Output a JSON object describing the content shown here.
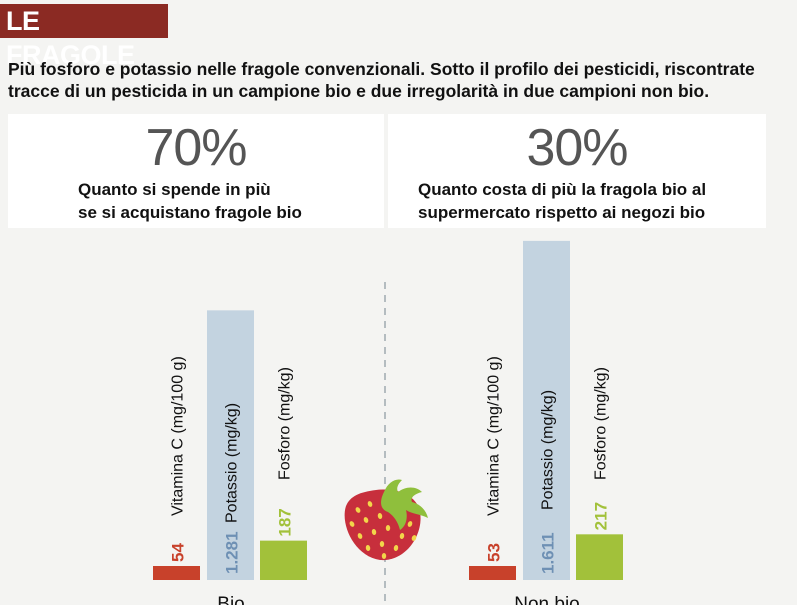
{
  "header": {
    "title": "LE FRAGOLE",
    "subtitle_line1": "Più fosforo e potassio nelle fragole convenzionali. Sotto il profilo dei pesticidi, riscontrate",
    "subtitle_line2": "tracce di un pesticida in un campione bio e due irregolarità in due campioni non bio."
  },
  "stats": [
    {
      "value": "70%",
      "line1": "Quanto si spende in più",
      "line2": "se si acquistano fragole bio"
    },
    {
      "value": "30%",
      "line1": "Quanto costa di più la fragola bio al",
      "line2": "supermercato rispetto ai negozi bio"
    }
  ],
  "colors": {
    "vitamina": "#c8412b",
    "potassio": "#c3d3e0",
    "fosforo": "#a2c13a",
    "potassio_label": "#6e90b4",
    "strawberry": "#c72f3c",
    "leaf": "#8fbf3c"
  },
  "icon": "strawberry-icon",
  "chart_data": {
    "type": "bar",
    "groups": [
      "Bio",
      "Non bio"
    ],
    "series": [
      {
        "name": "Vitamina C (mg/100 g)",
        "values": [
          54,
          53
        ],
        "labels": [
          "54",
          "53"
        ]
      },
      {
        "name": "Potassio (mg/kg)",
        "values": [
          1281,
          1611
        ],
        "labels": [
          "1.281",
          "1.611"
        ]
      },
      {
        "name": "Fosforo (mg/kg)",
        "values": [
          187,
          217
        ],
        "labels": [
          "187",
          "217"
        ]
      }
    ]
  }
}
